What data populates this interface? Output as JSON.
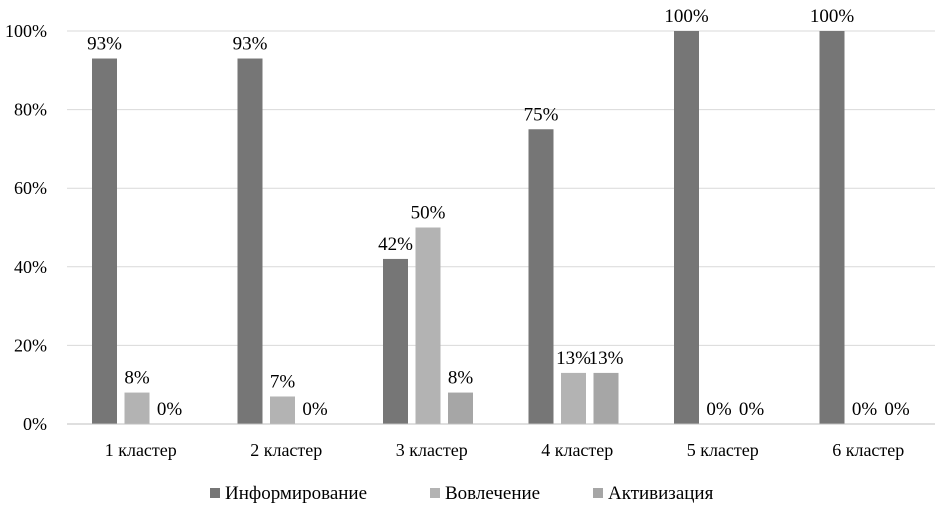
{
  "chart_data": {
    "type": "bar",
    "categories": [
      "1 кластер",
      "2 кластер",
      "3 кластер",
      "4 кластер",
      "5 кластер",
      "6 кластер"
    ],
    "series": [
      {
        "name": "Информирование",
        "values": [
          93,
          93,
          42,
          75,
          100,
          100
        ],
        "labels": [
          "93%",
          "93%",
          "42%",
          "75%",
          "100%",
          "100%"
        ],
        "color": "#767676"
      },
      {
        "name": "Вовлечение",
        "values": [
          8,
          7,
          50,
          13,
          0,
          0
        ],
        "labels": [
          "8%",
          "7%",
          "50%",
          "13%",
          "0%",
          "0%"
        ],
        "color": "#b3b3b3"
      },
      {
        "name": "Активизация",
        "values": [
          0,
          0,
          8,
          13,
          0,
          0
        ],
        "labels": [
          "0%",
          "0%",
          "8%",
          "13%",
          "0%",
          "0%"
        ],
        "color": "#a6a6a6"
      }
    ],
    "yticks": [
      "0%",
      "20%",
      "40%",
      "60%",
      "80%",
      "100%"
    ],
    "ylim": [
      0,
      100
    ],
    "grid": true,
    "legend": "bottom"
  }
}
